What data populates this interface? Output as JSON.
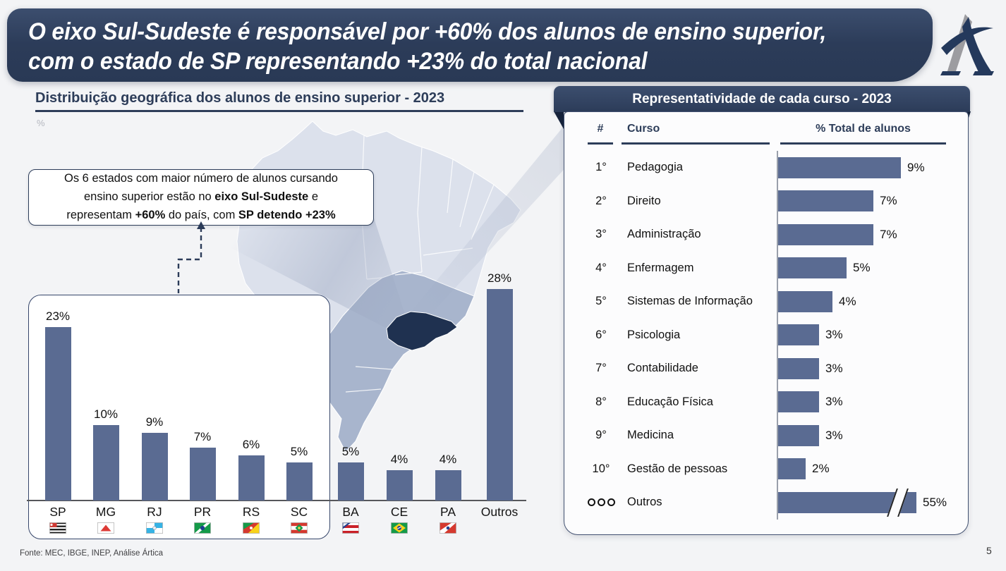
{
  "header": {
    "title_line1": "O eixo Sul-Sudeste é responsável por +60% dos alunos de ensino superior,",
    "title_line2": "com o estado de SP representando +23% do total nacional",
    "logo": "artica-logo"
  },
  "left_panel": {
    "title": "Distribuição geográfica dos alunos de ensino superior - 2023",
    "unit_label": "%",
    "callout_lines": [
      [
        {
          "text": "Os 6 estados com maior número de alunos cursando",
          "bold": false
        }
      ],
      [
        {
          "text": "ensino superior estão no ",
          "bold": false
        },
        {
          "text": "eixo Sul-Sudeste",
          "bold": true
        },
        {
          "text": " e",
          "bold": false
        }
      ],
      [
        {
          "text": "representam ",
          "bold": false
        },
        {
          "text": "+60%",
          "bold": true
        },
        {
          "text": " do país, com ",
          "bold": false
        },
        {
          "text": "SP detendo +23%",
          "bold": true
        }
      ]
    ],
    "map": {
      "highlighted_state": "SP",
      "medium_shade_region": "Sul-Sudeste states",
      "base_shade": "demais estados"
    }
  },
  "right_panel": {
    "title": "Representatividade de cada curso - 2023",
    "columns": {
      "rank": "#",
      "course": "Curso",
      "share": "% Total de alunos"
    }
  },
  "footer": {
    "source": "Fonte: MEC, IBGE, INEP, Análise Ártica",
    "page_number": "5"
  },
  "colors": {
    "navy": "#2c3c59",
    "bar_blue": "#5a6b92",
    "map_base": "#dce1ec",
    "map_medium": "#a8b5cd",
    "map_highlight": "#1f3150",
    "background": "#f3f4f6"
  },
  "chart_data": [
    {
      "type": "bar",
      "title": "Distribuição geográfica dos alunos de ensino superior - 2023",
      "ylabel": "%",
      "unit": "%",
      "categories": [
        "SP",
        "MG",
        "RJ",
        "PR",
        "RS",
        "SC",
        "BA",
        "CE",
        "PA",
        "Outros"
      ],
      "values": [
        23,
        10,
        9,
        7,
        6,
        5,
        5,
        4,
        4,
        28
      ],
      "flags": [
        "SP",
        "MG",
        "RJ",
        "PR",
        "RS",
        "SC",
        "BA",
        "CE",
        "PA",
        null
      ],
      "highlighted_group": [
        "SP",
        "MG",
        "RJ",
        "PR",
        "RS",
        "SC"
      ],
      "highlighted_group_note": "eixo Sul-Sudeste (boxed)",
      "ylim": [
        0,
        30
      ],
      "grid": false,
      "legend": false
    },
    {
      "type": "bar",
      "orientation": "horizontal",
      "title": "Representatividade de cada curso - 2023",
      "ranks": [
        "1°",
        "2°",
        "3°",
        "4°",
        "5°",
        "6°",
        "7°",
        "8°",
        "9°",
        "10°",
        "ooo"
      ],
      "categories": [
        "Pedagogia",
        "Direito",
        "Administração",
        "Enfermagem",
        "Sistemas de Informação",
        "Psicologia",
        "Contabilidade",
        "Educação Física",
        "Medicina",
        "Gestão de pessoas",
        "Outros"
      ],
      "values": [
        9,
        7,
        7,
        5,
        4,
        3,
        3,
        3,
        3,
        2,
        55
      ],
      "unit": "%",
      "axis_break_category": "Outros",
      "xlim": [
        0,
        10
      ],
      "grid": false,
      "legend": false
    }
  ]
}
